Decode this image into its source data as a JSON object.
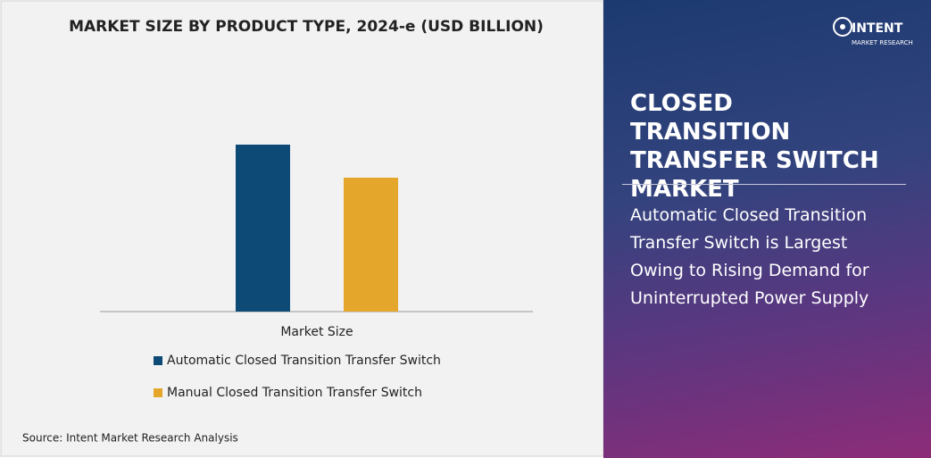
{
  "chart_data": {
    "type": "bar",
    "title": "MARKET SIZE BY PRODUCT TYPE, 2024-e (USD BILLION)",
    "categories": [
      "Market Size"
    ],
    "series": [
      {
        "name": "Automatic Closed Transition Transfer Switch",
        "color": "#0e4a76",
        "values": [
          1.87
        ]
      },
      {
        "name": "Manual Closed Transition Transfer Switch",
        "color": "#e4a72c",
        "values": [
          1.5
        ]
      }
    ]
  },
  "source": "Source: Intent Market Research Analysis",
  "panel": {
    "title": "CLOSED TRANSITION TRANSFER SWITCH MARKET",
    "headline": "Automatic Closed Transition Transfer Switch is Largest Owing to Rising Demand for Uninterrupted Power Supply"
  },
  "logo": {
    "name": "INTENT",
    "sub": "MARKET RESEARCH"
  }
}
